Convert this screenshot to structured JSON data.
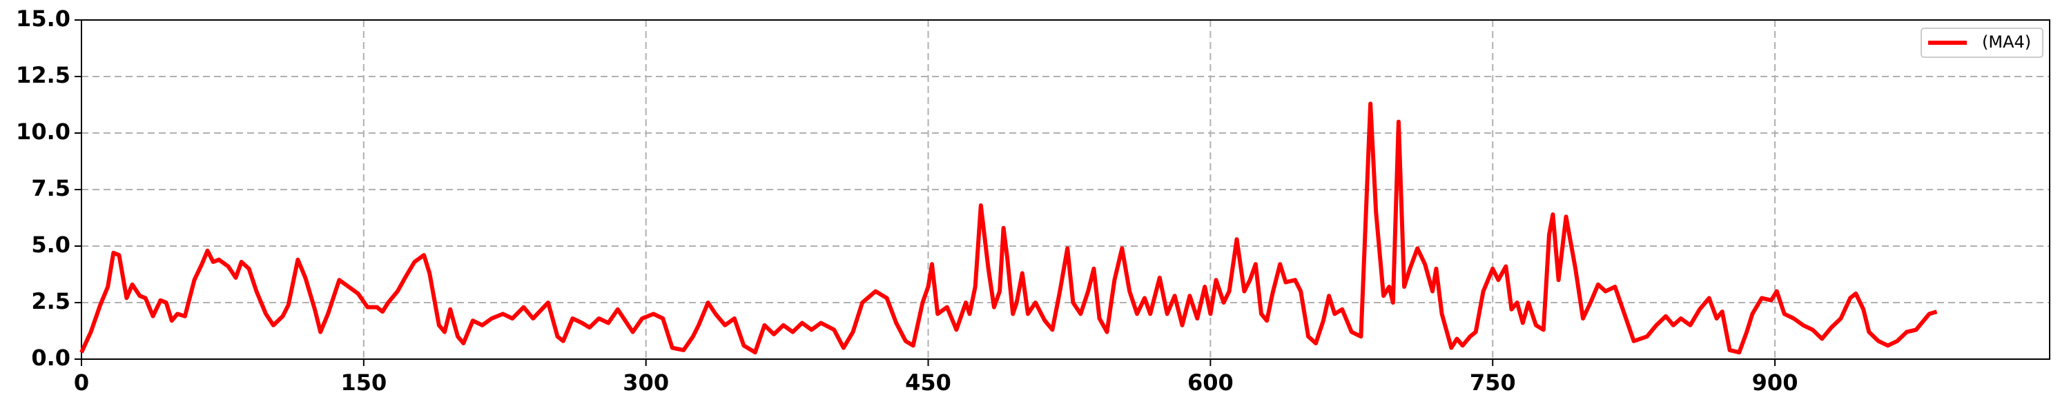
{
  "chart_data": {
    "type": "line",
    "x": [
      0,
      5,
      10,
      14,
      17,
      20,
      24,
      27,
      31,
      34,
      38,
      42,
      45,
      48,
      51,
      55,
      60,
      64,
      67,
      70,
      73,
      78,
      82,
      85,
      89,
      93,
      98,
      102,
      107,
      110,
      115,
      119,
      124,
      127,
      131,
      137,
      142,
      147,
      152,
      157,
      160,
      163,
      168,
      172,
      177,
      182,
      185,
      190,
      193,
      196,
      200,
      203,
      208,
      213,
      218,
      224,
      229,
      235,
      240,
      248,
      253,
      256,
      261,
      266,
      270,
      275,
      280,
      285,
      293,
      298,
      304,
      309,
      314,
      320,
      325,
      328,
      333,
      337,
      342,
      347,
      352,
      358,
      363,
      368,
      373,
      378,
      383,
      388,
      393,
      400,
      405,
      410,
      415,
      422,
      428,
      433,
      438,
      442,
      447,
      450,
      452,
      455,
      460,
      465,
      470,
      472,
      475,
      478,
      482,
      485,
      488,
      490,
      492,
      495,
      497,
      500,
      503,
      507,
      512,
      516,
      520,
      524,
      527,
      531,
      535,
      538,
      541,
      545,
      549,
      553,
      557,
      561,
      565,
      568,
      573,
      577,
      581,
      585,
      589,
      593,
      597,
      600,
      603,
      607,
      610,
      614,
      618,
      621,
      624,
      627,
      630,
      633,
      637,
      640,
      645,
      648,
      652,
      656,
      660,
      663,
      666,
      670,
      675,
      680,
      685,
      688,
      692,
      695,
      697,
      700,
      703,
      706,
      710,
      714,
      718,
      720,
      723,
      728,
      731,
      734,
      738,
      741,
      745,
      750,
      753,
      757,
      760,
      763,
      766,
      769,
      773,
      777,
      780,
      782,
      785,
      789,
      794,
      798,
      802,
      806,
      810,
      815,
      820,
      825,
      832,
      837,
      842,
      846,
      850,
      855,
      860,
      865,
      869,
      872,
      876,
      881,
      885,
      888,
      893,
      898,
      901,
      905,
      910,
      915,
      920,
      925,
      930,
      935,
      940,
      943,
      947,
      950,
      955,
      960,
      965,
      970,
      975,
      982,
      986
    ],
    "series": [
      {
        "name": "(MA4)",
        "color": "#ff0000",
        "values": [
          0.3,
          1.2,
          2.4,
          3.2,
          4.7,
          4.6,
          2.7,
          3.3,
          2.8,
          2.7,
          1.9,
          2.6,
          2.5,
          1.7,
          2.0,
          1.9,
          3.5,
          4.2,
          4.8,
          4.3,
          4.4,
          4.1,
          3.6,
          4.3,
          4.0,
          3.0,
          2.0,
          1.5,
          1.9,
          2.4,
          4.4,
          3.6,
          2.2,
          1.2,
          2.0,
          3.5,
          3.2,
          2.9,
          2.3,
          2.3,
          2.1,
          2.5,
          3.0,
          3.6,
          4.3,
          4.6,
          3.8,
          1.5,
          1.2,
          2.2,
          1.0,
          0.7,
          1.7,
          1.5,
          1.8,
          2.0,
          1.8,
          2.3,
          1.8,
          2.5,
          1.0,
          0.8,
          1.8,
          1.6,
          1.4,
          1.8,
          1.6,
          2.2,
          1.2,
          1.8,
          2.0,
          1.8,
          0.5,
          0.4,
          1.0,
          1.5,
          2.5,
          2.0,
          1.5,
          1.8,
          0.6,
          0.3,
          1.5,
          1.1,
          1.5,
          1.2,
          1.6,
          1.3,
          1.6,
          1.3,
          0.5,
          1.2,
          2.5,
          3.0,
          2.7,
          1.6,
          0.8,
          0.6,
          2.5,
          3.2,
          4.2,
          2.0,
          2.3,
          1.3,
          2.5,
          2.0,
          3.2,
          6.8,
          4.0,
          2.3,
          3.0,
          5.8,
          4.5,
          2.0,
          2.5,
          3.8,
          2.0,
          2.5,
          1.7,
          1.3,
          3.0,
          4.9,
          2.5,
          2.0,
          3.0,
          4.0,
          1.8,
          1.2,
          3.5,
          4.9,
          3.0,
          2.0,
          2.7,
          2.0,
          3.6,
          2.0,
          2.8,
          1.5,
          2.8,
          1.8,
          3.2,
          2.0,
          3.5,
          2.5,
          3.0,
          5.3,
          3.0,
          3.5,
          4.2,
          2.0,
          1.7,
          2.9,
          4.2,
          3.4,
          3.5,
          3.0,
          1.0,
          0.7,
          1.7,
          2.8,
          2.0,
          2.2,
          1.2,
          1.0,
          11.3,
          6.5,
          2.8,
          3.2,
          2.5,
          10.5,
          3.2,
          4.0,
          4.9,
          4.2,
          3.0,
          4.0,
          2.0,
          0.5,
          0.9,
          0.6,
          1.0,
          1.2,
          3.0,
          4.0,
          3.5,
          4.1,
          2.2,
          2.5,
          1.6,
          2.5,
          1.5,
          1.3,
          5.5,
          6.4,
          3.5,
          6.3,
          4.0,
          1.8,
          2.5,
          3.3,
          3.0,
          3.2,
          2.0,
          0.8,
          1.0,
          1.5,
          1.9,
          1.5,
          1.8,
          1.5,
          2.2,
          2.7,
          1.8,
          2.1,
          0.4,
          0.3,
          1.2,
          2.0,
          2.7,
          2.6,
          3.0,
          2.0,
          1.8,
          1.5,
          1.3,
          0.9,
          1.4,
          1.8,
          2.7,
          2.9,
          2.2,
          1.2,
          0.8,
          0.6,
          0.8,
          1.2,
          1.3,
          2.0,
          2.1
        ]
      }
    ],
    "xlim": [
      0,
      1046
    ],
    "ylim": [
      0,
      15
    ],
    "xticks": [
      0,
      150,
      300,
      450,
      600,
      750,
      900
    ],
    "yticks": [
      {
        "value": 0,
        "label": "0.0"
      },
      2.5,
      {
        "value": 5,
        "label": "5.0"
      },
      7.5,
      {
        "value": 10,
        "label": "10.0"
      },
      12.5,
      {
        "value": 15,
        "label": "15.0"
      }
    ],
    "grid": true,
    "legend": "upper right"
  }
}
